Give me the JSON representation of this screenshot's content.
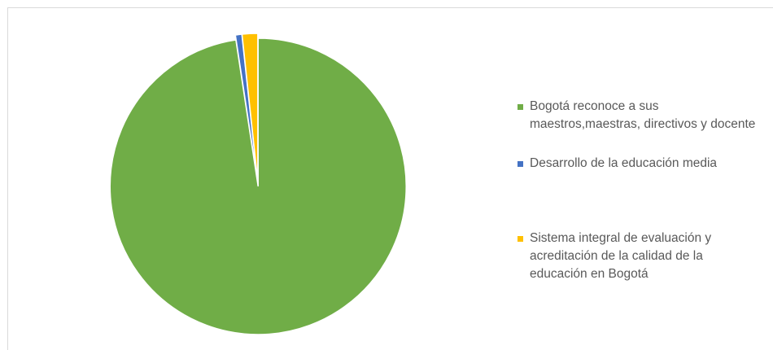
{
  "chart_data": {
    "type": "pie",
    "categories": [
      "Bogotá reconoce a sus maestros,maestras, directivos y docente",
      "Desarrollo de la educación media",
      "Sistema integral de evaluación y acreditación de la calidad de la educación en Bogotá"
    ],
    "values": [
      97.6,
      0.7,
      1.7
    ],
    "colors": [
      "#70ad47",
      "#4472c4",
      "#ffc000"
    ],
    "legend": "right"
  }
}
